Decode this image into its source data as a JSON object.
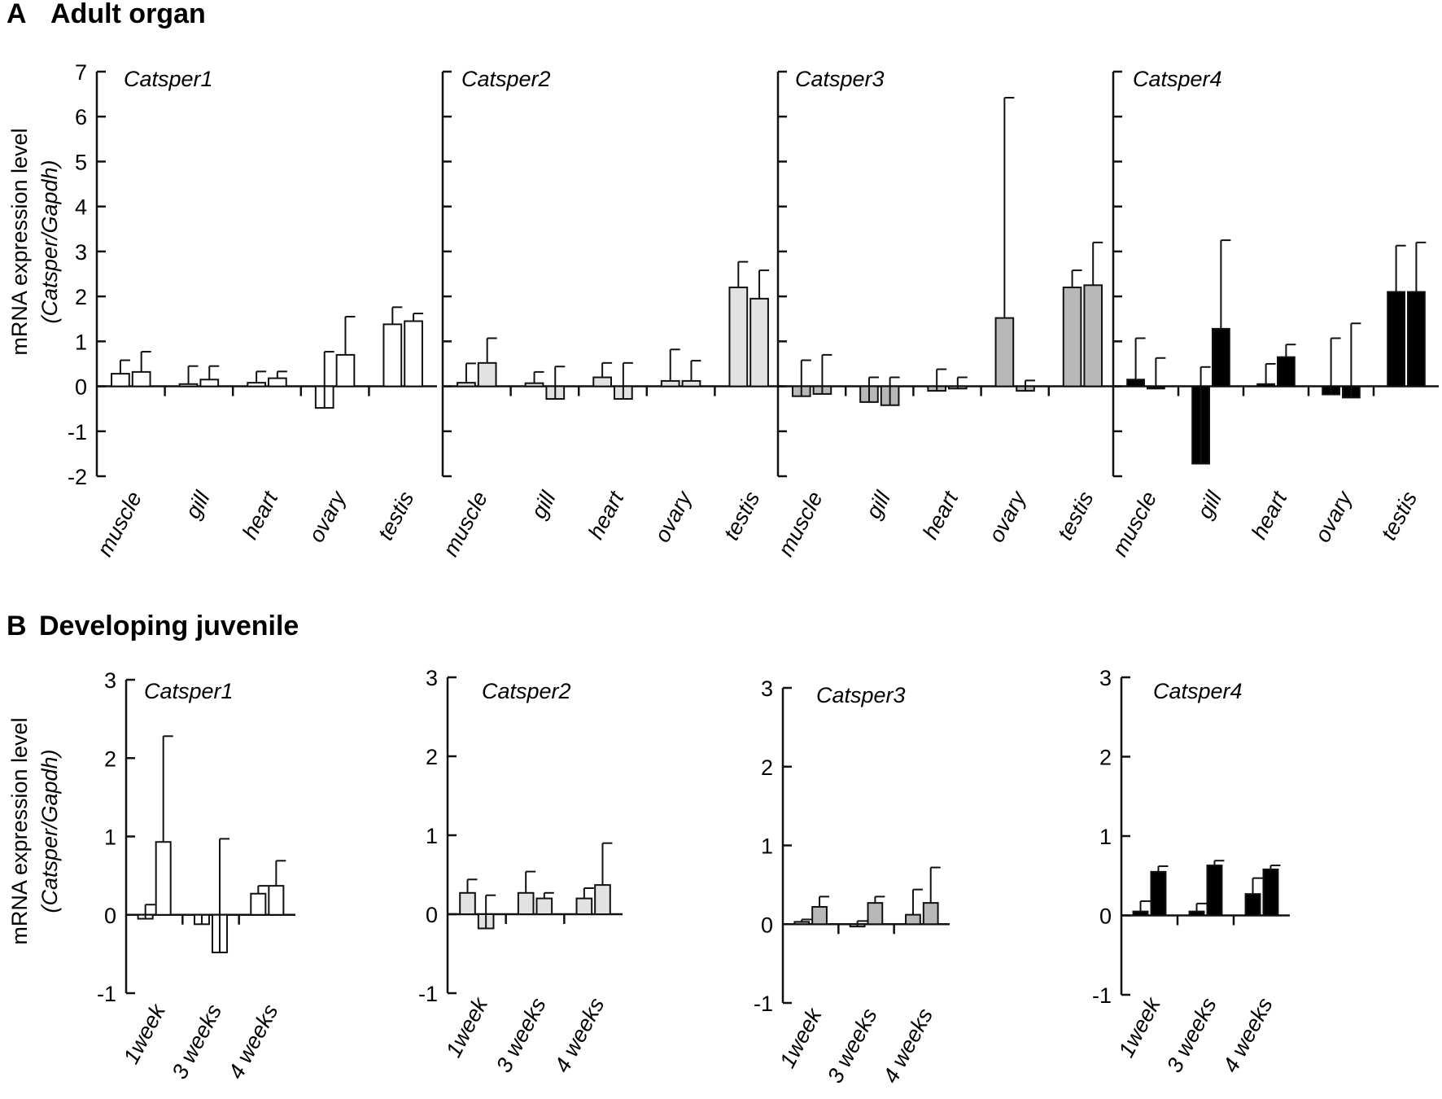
{
  "panels": [
    {
      "letter": "A",
      "title": "Adult organ",
      "ylabel_line1": "mRNA expression level",
      "ylabel_line2": "(Catsper/Gapdh)"
    },
    {
      "letter": "B",
      "title": "Developing juvenile",
      "ylabel_line1": "mRNA expression level",
      "ylabel_line2": "(Catsper/Gapdh)"
    }
  ],
  "colors": {
    "Catsper1": "#ffffff",
    "Catsper2": "#e2e2e2",
    "Catsper3": "#b8b8b8",
    "Catsper4": "#000000"
  },
  "chart_data": [
    {
      "type": "bar",
      "panel": "A",
      "gene": "Catsper1",
      "categories": [
        "muscle",
        "gill",
        "heart",
        "ovary",
        "testis"
      ],
      "ylim": [
        -2,
        7
      ],
      "yticks": [
        -2,
        -1,
        0,
        1,
        2,
        3,
        4,
        5,
        6,
        7
      ],
      "show_ticklabels": true,
      "color": "#ffffff",
      "pairs": [
        [
          0.28,
          0.32
        ],
        [
          0.05,
          0.15
        ],
        [
          0.08,
          0.18
        ],
        [
          -0.48,
          0.7
        ],
        [
          1.38,
          1.45
        ]
      ],
      "errors": [
        [
          0.3,
          0.45
        ],
        [
          0.4,
          0.3
        ],
        [
          0.25,
          0.15
        ],
        [
          1.25,
          0.85
        ],
        [
          0.38,
          0.17
        ]
      ]
    },
    {
      "type": "bar",
      "panel": "A",
      "gene": "Catsper2",
      "categories": [
        "muscle",
        "gill",
        "heart",
        "ovary",
        "testis"
      ],
      "ylim": [
        -2,
        7
      ],
      "yticks": [
        -2,
        -1,
        0,
        1,
        2,
        3,
        4,
        5,
        6,
        7
      ],
      "show_ticklabels": false,
      "color": "#e2e2e2",
      "pairs": [
        [
          0.08,
          0.52
        ],
        [
          0.07,
          -0.28
        ],
        [
          0.2,
          -0.28
        ],
        [
          0.12,
          0.12
        ],
        [
          2.2,
          1.95
        ]
      ],
      "errors": [
        [
          0.43,
          0.55
        ],
        [
          0.25,
          0.72
        ],
        [
          0.32,
          0.8
        ],
        [
          0.7,
          0.45
        ],
        [
          0.57,
          0.63
        ]
      ]
    },
    {
      "type": "bar",
      "panel": "A",
      "gene": "Catsper3",
      "categories": [
        "muscle",
        "gill",
        "heart",
        "ovary",
        "testis"
      ],
      "ylim": [
        -2,
        7
      ],
      "yticks": [
        -2,
        -1,
        0,
        1,
        2,
        3,
        4,
        5,
        6,
        7
      ],
      "show_ticklabels": false,
      "color": "#b8b8b8",
      "pairs": [
        [
          -0.22,
          -0.17
        ],
        [
          -0.35,
          -0.42
        ],
        [
          -0.1,
          -0.05
        ],
        [
          1.52,
          -0.1
        ],
        [
          2.2,
          2.25
        ]
      ],
      "errors": [
        [
          0.8,
          0.87
        ],
        [
          0.55,
          0.62
        ],
        [
          0.48,
          0.25
        ],
        [
          4.9,
          0.23
        ],
        [
          0.38,
          0.95
        ]
      ]
    },
    {
      "type": "bar",
      "panel": "A",
      "gene": "Catsper4",
      "categories": [
        "muscle",
        "gill",
        "heart",
        "ovary",
        "testis"
      ],
      "ylim": [
        -2,
        7
      ],
      "yticks": [
        -2,
        -1,
        0,
        1,
        2,
        3,
        4,
        5,
        6,
        7
      ],
      "show_ticklabels": false,
      "color": "#000000",
      "pairs": [
        [
          0.15,
          -0.05
        ],
        [
          -1.72,
          1.28
        ],
        [
          0.05,
          0.65
        ],
        [
          -0.18,
          -0.25
        ],
        [
          2.1,
          2.1
        ]
      ],
      "errors": [
        [
          0.92,
          0.68
        ],
        [
          2.15,
          1.97
        ],
        [
          0.45,
          0.28
        ],
        [
          1.25,
          1.65
        ],
        [
          1.03,
          1.1
        ]
      ]
    },
    {
      "type": "bar",
      "panel": "B",
      "gene": "Catsper1",
      "categories": [
        "1week",
        "3 weeks",
        "4 weeks"
      ],
      "ylim": [
        -1,
        3
      ],
      "yticks": [
        -1,
        0,
        1,
        2,
        3
      ],
      "show_ticklabels": true,
      "color": "#ffffff",
      "pairs": [
        [
          -0.05,
          0.93
        ],
        [
          -0.12,
          -0.48
        ],
        [
          0.27,
          0.37
        ]
      ],
      "errors": [
        [
          0.18,
          1.35
        ],
        [
          0.12,
          1.45
        ],
        [
          0.1,
          0.32
        ]
      ]
    },
    {
      "type": "bar",
      "panel": "B",
      "gene": "Catsper2",
      "categories": [
        "1week",
        "3 weeks",
        "4 weeks"
      ],
      "ylim": [
        -1,
        3
      ],
      "yticks": [
        -1,
        0,
        1,
        2,
        3
      ],
      "show_ticklabels": true,
      "color": "#e2e2e2",
      "pairs": [
        [
          0.27,
          -0.18
        ],
        [
          0.27,
          0.2
        ],
        [
          0.2,
          0.37
        ]
      ],
      "errors": [
        [
          0.17,
          0.42
        ],
        [
          0.27,
          0.07
        ],
        [
          0.13,
          0.53
        ]
      ]
    },
    {
      "type": "bar",
      "panel": "B",
      "gene": "Catsper3",
      "categories": [
        "1week",
        "3 weeks",
        "4 weeks"
      ],
      "ylim": [
        -1,
        3
      ],
      "yticks": [
        -1,
        0,
        1,
        2,
        3
      ],
      "show_ticklabels": true,
      "color": "#b8b8b8",
      "pairs": [
        [
          0.03,
          0.22
        ],
        [
          -0.03,
          0.27
        ],
        [
          0.12,
          0.27
        ]
      ],
      "errors": [
        [
          0.03,
          0.13
        ],
        [
          0.07,
          0.08
        ],
        [
          0.32,
          0.45
        ]
      ]
    },
    {
      "type": "bar",
      "panel": "B",
      "gene": "Catsper4",
      "categories": [
        "1week",
        "3 weeks",
        "4 weeks"
      ],
      "ylim": [
        -1,
        3
      ],
      "yticks": [
        -1,
        0,
        1,
        2,
        3
      ],
      "show_ticklabels": true,
      "color": "#000000",
      "pairs": [
        [
          0.05,
          0.55
        ],
        [
          0.05,
          0.63
        ],
        [
          0.27,
          0.58
        ]
      ],
      "errors": [
        [
          0.13,
          0.07
        ],
        [
          0.1,
          0.06
        ],
        [
          0.2,
          0.05
        ]
      ]
    }
  ]
}
